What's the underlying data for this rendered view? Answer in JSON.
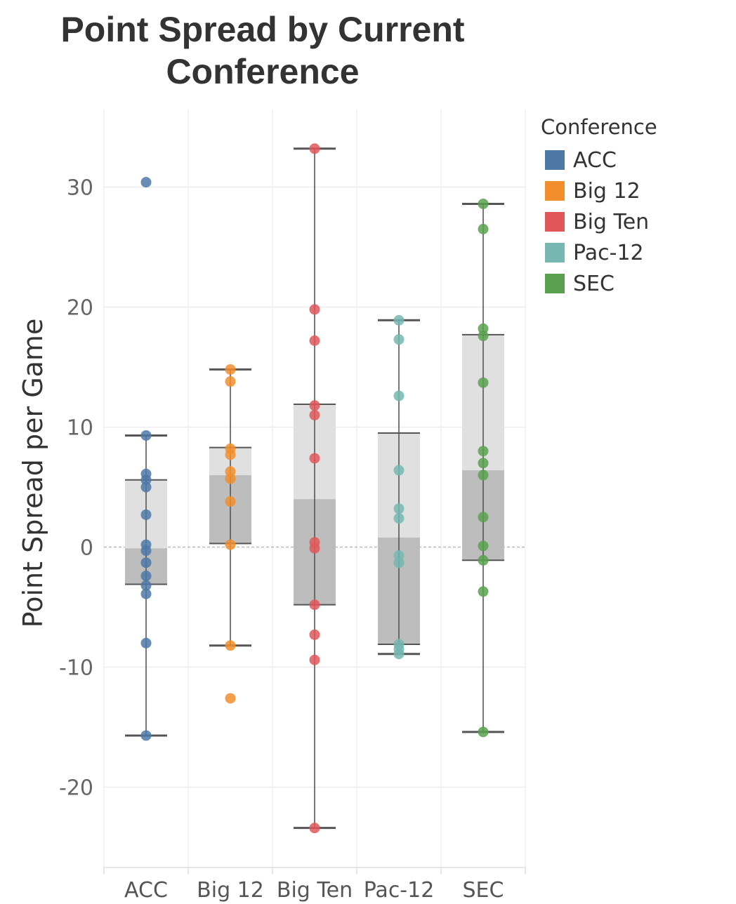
{
  "chart_data": {
    "type": "box",
    "title": "Point Spread by Current Conference",
    "xlabel": "",
    "ylabel": "Point Spread per Game",
    "ylim": [
      -26,
      36
    ],
    "yticks": [
      -20,
      -10,
      0,
      10,
      20,
      30
    ],
    "ytick_labels": [
      "-20",
      "-10",
      "0",
      "10",
      "20",
      "30"
    ],
    "grid": true,
    "zero_line": true,
    "legend_title": "Conference",
    "legend_position": "right",
    "categories": [
      "ACC",
      "Big 12",
      "Big Ten",
      "Pac-12",
      "SEC"
    ],
    "series": [
      {
        "name": "ACC",
        "color": "#4e79a7",
        "box": {
          "whisker_low": -15.7,
          "q1": -3.1,
          "median": -0.1,
          "q3": 5.6,
          "whisker_high": 9.3
        },
        "points": [
          30.4,
          9.3,
          6.1,
          5.6,
          5.0,
          2.7,
          0.2,
          -0.3,
          -1.3,
          -2.4,
          -3.2,
          -3.9,
          -8.0,
          -15.7
        ]
      },
      {
        "name": "Big 12",
        "color": "#f28e2b",
        "box": {
          "whisker_low": -8.2,
          "q1": 0.3,
          "median": 6.0,
          "q3": 8.3,
          "whisker_high": 14.8
        },
        "points": [
          14.8,
          13.8,
          8.2,
          7.7,
          6.3,
          5.7,
          3.8,
          0.2,
          -8.2,
          -12.6
        ]
      },
      {
        "name": "Big Ten",
        "color": "#e15759",
        "box": {
          "whisker_low": -23.4,
          "q1": -4.8,
          "median": 4.0,
          "q3": 11.9,
          "whisker_high": 33.2
        },
        "points": [
          33.2,
          19.8,
          17.2,
          11.8,
          11.0,
          7.4,
          0.4,
          -0.1,
          -4.8,
          -7.3,
          -9.4,
          -23.4
        ]
      },
      {
        "name": "Pac-12",
        "color": "#76b7b2",
        "box": {
          "whisker_low": -8.9,
          "q1": -8.1,
          "median": 0.8,
          "q3": 9.5,
          "whisker_high": 18.9
        },
        "points": [
          18.9,
          17.3,
          12.6,
          6.4,
          3.2,
          2.4,
          -0.7,
          -1.3,
          -8.1,
          -8.5,
          -8.9
        ]
      },
      {
        "name": "SEC",
        "color": "#59a14f",
        "box": {
          "whisker_low": -15.4,
          "q1": -1.1,
          "median": 6.4,
          "q3": 17.7,
          "whisker_high": 28.6
        },
        "points": [
          28.6,
          26.5,
          18.2,
          17.6,
          13.7,
          8.0,
          7.0,
          6.0,
          2.5,
          0.1,
          -1.1,
          -3.7,
          -15.4
        ]
      }
    ]
  }
}
